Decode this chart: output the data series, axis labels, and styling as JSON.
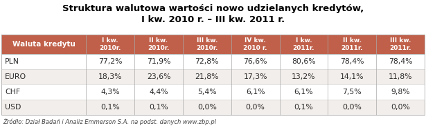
{
  "title_line1": "Struktura walutowa wartości nowo udzielanych kredytów,",
  "title_line2": "I kw. 2010 r. – III kw. 2011 r.",
  "col_header": "Waluta kredytu",
  "col_labels": [
    "I kw.\n2010r.",
    "II kw.\n2010r.",
    "III kw.\n2010r.",
    "IV kw.\n2010 r.",
    "I kw.\n2011r.",
    "II kw.\n2011r.",
    "III kw.\n2011r."
  ],
  "row_labels": [
    "PLN",
    "EURO",
    "CHF",
    "USD"
  ],
  "data": [
    [
      "77,2%",
      "71,9%",
      "72,8%",
      "76,6%",
      "80,6%",
      "78,4%",
      "78,4%"
    ],
    [
      "18,3%",
      "23,6%",
      "21,8%",
      "17,3%",
      "13,2%",
      "14,1%",
      "11,8%"
    ],
    [
      "4,3%",
      "4,4%",
      "5,4%",
      "6,1%",
      "6,1%",
      "7,5%",
      "9,8%"
    ],
    [
      "0,1%",
      "0,1%",
      "0,0%",
      "0,0%",
      "0,1%",
      "0,0%",
      "0,0%"
    ]
  ],
  "header_bg": "#c0604a",
  "header_text_color": "#ffffff",
  "row_bg_even": "#ffffff",
  "row_bg_odd": "#f2eeeb",
  "title_color": "#000000",
  "footnote": "Żródło: Dział Badań i Analiz Emmerson S.A. na podst. danych www.zbp.pl",
  "footnote_color": "#444444",
  "text_color": "#2a2a2a",
  "col_widths_rel": [
    1.75,
    1.0,
    1.0,
    1.0,
    1.0,
    1.0,
    1.0,
    1.0
  ]
}
